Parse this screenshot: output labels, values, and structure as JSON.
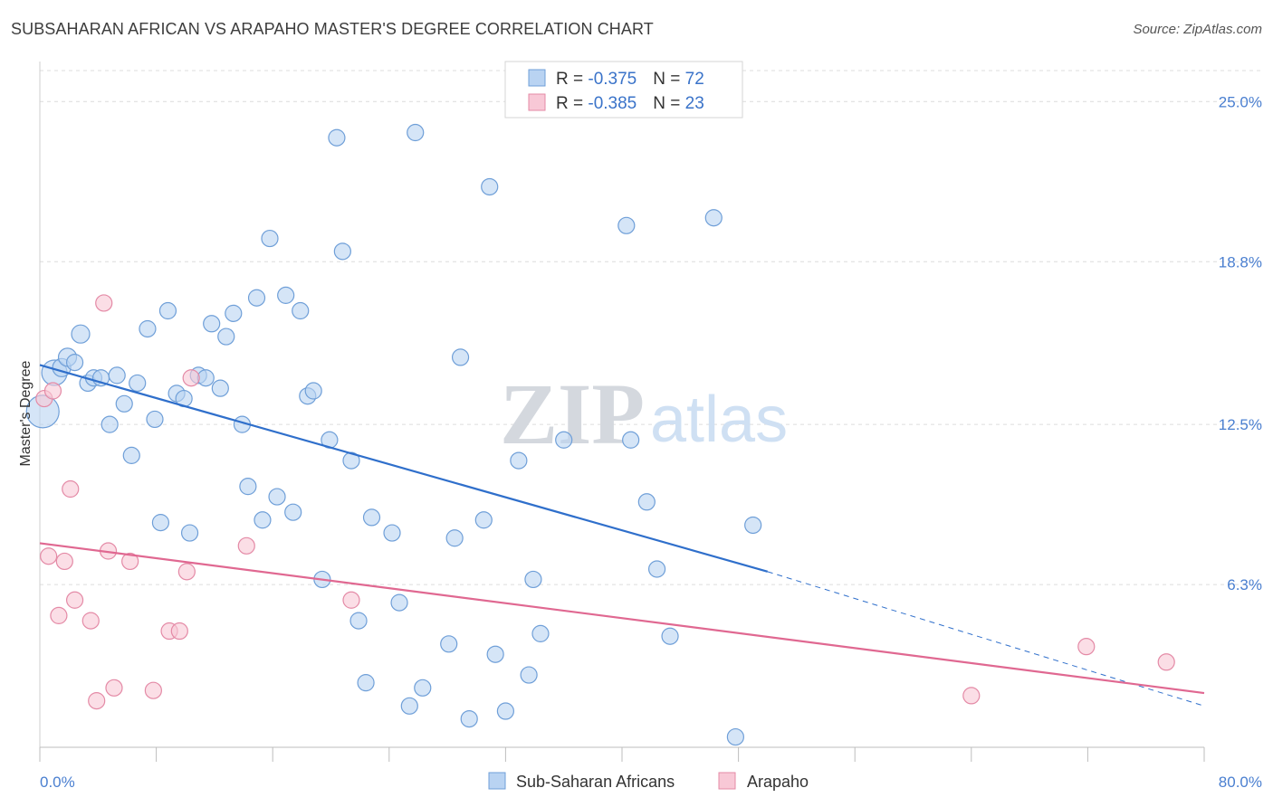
{
  "header": {
    "title": "SUBSAHARAN AFRICAN VS ARAPAHO MASTER'S DEGREE CORRELATION CHART",
    "source": "Source: ZipAtlas.com"
  },
  "colors": {
    "blue_fill": "#b9d3f2",
    "blue_stroke": "#6f9fd8",
    "blue_line": "#2f6fcb",
    "pink_fill": "#f8c8d6",
    "pink_stroke": "#e48aa6",
    "pink_line": "#e06891",
    "grid": "#dcdcdc",
    "tick_label": "#4a7fd0"
  },
  "legend": {
    "rows": [
      {
        "r_label": "R = ",
        "r_value": "-0.375",
        "n_label": "N = ",
        "n_value": "72"
      },
      {
        "r_label": "R = ",
        "r_value": "-0.385",
        "n_label": "N = ",
        "n_value": "23"
      }
    ]
  },
  "chart_data": {
    "type": "scatter",
    "title": "SUBSAHARAN AFRICAN VS ARAPAHO MASTER'S DEGREE CORRELATION CHART",
    "xlabel": "",
    "ylabel": "Master's Degree",
    "xlim": [
      0,
      80
    ],
    "ylim": [
      0,
      26.2
    ],
    "x_tick_labels": [
      "0.0%",
      "80.0%"
    ],
    "y_ticks": [
      6.3,
      12.5,
      18.8,
      25.0
    ],
    "y_tick_labels": [
      "6.3%",
      "12.5%",
      "18.8%",
      "25.0%"
    ],
    "grid": "horizontal dashed",
    "watermark": {
      "zip": "ZIP",
      "atlas": "atlas"
    },
    "series": [
      {
        "name": "Sub-Saharan Africans",
        "color": "#b9d3f2",
        "trend": {
          "x": [
            0,
            50
          ],
          "y": [
            14.8,
            6.8
          ],
          "dashed_to": [
            80,
            1.6
          ]
        },
        "points": [
          [
            0.2,
            13.0,
            18
          ],
          [
            1.0,
            14.5,
            14
          ],
          [
            1.5,
            14.7,
            10
          ],
          [
            1.9,
            15.1,
            10
          ],
          [
            2.8,
            16.0,
            10
          ],
          [
            3.3,
            14.1,
            9
          ],
          [
            3.7,
            14.3,
            9
          ],
          [
            4.2,
            14.3,
            9
          ],
          [
            4.8,
            12.5,
            9
          ],
          [
            5.3,
            14.4,
            9
          ],
          [
            5.8,
            13.3,
            9
          ],
          [
            6.3,
            11.3,
            9
          ],
          [
            6.7,
            14.1,
            9
          ],
          [
            7.4,
            16.2,
            9
          ],
          [
            7.9,
            12.7,
            9
          ],
          [
            8.3,
            8.7,
            9
          ],
          [
            8.8,
            16.9,
            9
          ],
          [
            9.4,
            13.7,
            9
          ],
          [
            9.9,
            13.5,
            9
          ],
          [
            10.3,
            8.3,
            9
          ],
          [
            10.9,
            14.4,
            9
          ],
          [
            11.4,
            14.3,
            9
          ],
          [
            11.8,
            16.4,
            9
          ],
          [
            12.4,
            13.9,
            9
          ],
          [
            12.8,
            15.9,
            9
          ],
          [
            13.3,
            16.8,
            9
          ],
          [
            13.9,
            12.5,
            9
          ],
          [
            14.3,
            10.1,
            9
          ],
          [
            14.9,
            17.4,
            9
          ],
          [
            15.3,
            8.8,
            9
          ],
          [
            15.8,
            19.7,
            9
          ],
          [
            16.3,
            9.7,
            9
          ],
          [
            16.9,
            17.5,
            9
          ],
          [
            17.4,
            9.1,
            9
          ],
          [
            17.9,
            16.9,
            9
          ],
          [
            18.4,
            13.6,
            9
          ],
          [
            18.8,
            13.8,
            9
          ],
          [
            19.4,
            6.5,
            9
          ],
          [
            19.9,
            11.9,
            9
          ],
          [
            20.4,
            23.6,
            9
          ],
          [
            20.8,
            19.2,
            9
          ],
          [
            21.4,
            11.1,
            9
          ],
          [
            21.9,
            4.9,
            9
          ],
          [
            22.4,
            2.5,
            9
          ],
          [
            22.8,
            8.9,
            9
          ],
          [
            24.2,
            8.3,
            9
          ],
          [
            24.7,
            5.6,
            9
          ],
          [
            25.4,
            1.6,
            9
          ],
          [
            25.8,
            23.8,
            9
          ],
          [
            26.3,
            2.3,
            9
          ],
          [
            28.1,
            4.0,
            9
          ],
          [
            28.5,
            8.1,
            9
          ],
          [
            28.9,
            15.1,
            9
          ],
          [
            29.5,
            1.1,
            9
          ],
          [
            30.5,
            8.8,
            9
          ],
          [
            30.9,
            21.7,
            9
          ],
          [
            31.3,
            3.6,
            9
          ],
          [
            32.0,
            1.4,
            9
          ],
          [
            32.9,
            11.1,
            9
          ],
          [
            33.6,
            2.8,
            9
          ],
          [
            33.9,
            6.5,
            9
          ],
          [
            34.4,
            4.4,
            9
          ],
          [
            36.0,
            11.9,
            9
          ],
          [
            40.3,
            20.2,
            9
          ],
          [
            40.6,
            11.9,
            9
          ],
          [
            41.7,
            9.5,
            9
          ],
          [
            42.4,
            6.9,
            9
          ],
          [
            43.3,
            4.3,
            9
          ],
          [
            46.3,
            20.5,
            9
          ],
          [
            47.8,
            0.4,
            9
          ],
          [
            49.0,
            8.6,
            9
          ],
          [
            2.4,
            14.9,
            9
          ]
        ]
      },
      {
        "name": "Arapaho",
        "color": "#f8c8d6",
        "trend": {
          "x": [
            0,
            80
          ],
          "y": [
            7.9,
            2.1
          ]
        },
        "points": [
          [
            0.3,
            13.5,
            9
          ],
          [
            0.9,
            13.8,
            9
          ],
          [
            0.6,
            7.4,
            9
          ],
          [
            1.3,
            5.1,
            9
          ],
          [
            1.7,
            7.2,
            9
          ],
          [
            2.1,
            10.0,
            9
          ],
          [
            2.4,
            5.7,
            9
          ],
          [
            3.5,
            4.9,
            9
          ],
          [
            3.9,
            1.8,
            9
          ],
          [
            4.4,
            17.2,
            9
          ],
          [
            4.7,
            7.6,
            9
          ],
          [
            5.1,
            2.3,
            9
          ],
          [
            6.2,
            7.2,
            9
          ],
          [
            7.8,
            2.2,
            9
          ],
          [
            8.9,
            4.5,
            9
          ],
          [
            9.6,
            4.5,
            9
          ],
          [
            10.1,
            6.8,
            9
          ],
          [
            10.4,
            14.3,
            9
          ],
          [
            14.2,
            7.8,
            9
          ],
          [
            21.4,
            5.7,
            9
          ],
          [
            64.0,
            2.0,
            9
          ],
          [
            71.9,
            3.9,
            9
          ],
          [
            77.4,
            3.3,
            9
          ]
        ]
      }
    ]
  },
  "bottom_legend": {
    "items": [
      {
        "label": "Sub-Saharan Africans"
      },
      {
        "label": "Arapaho"
      }
    ]
  }
}
